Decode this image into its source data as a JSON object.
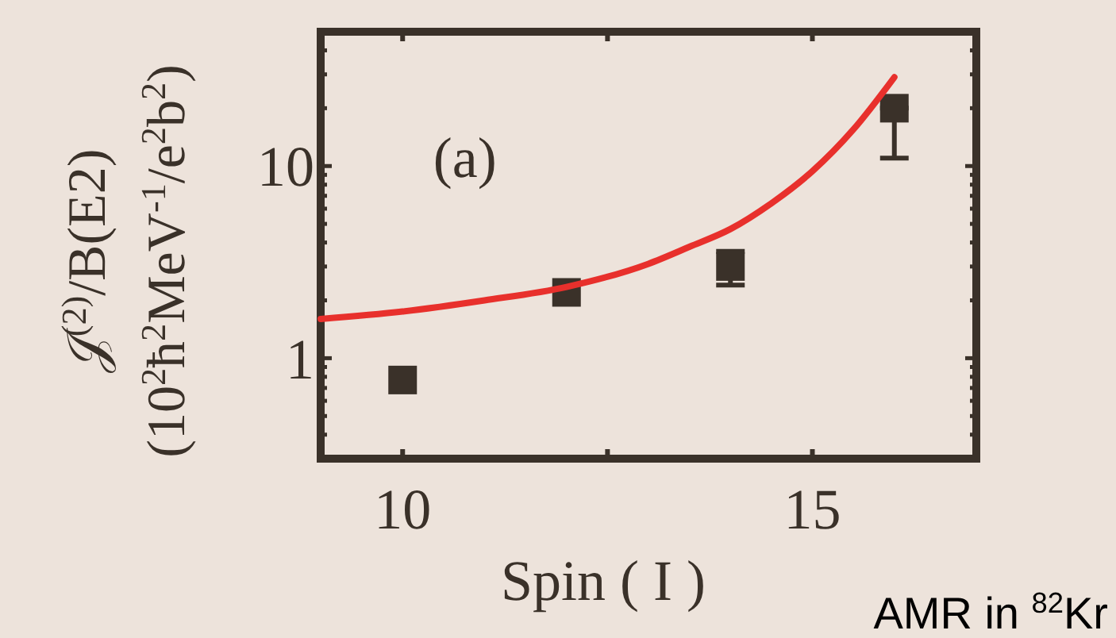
{
  "chart_data": {
    "type": "scatter",
    "xlabel": "Spin ( I )",
    "ylabel": "𝒥$^{(2)}$/B(E2)\n(10$^{2}$ħ$^{2}$MeV$^{-1}$/e$^{2}$b$^{2}$)",
    "annotations": [
      "(a)",
      "AMR in $^{82}$Kr"
    ],
    "log": "y",
    "marker": "square",
    "xlim": [
      9,
      17
    ],
    "xticks": [
      10,
      {
        "value": 12.5,
        "label": null
      },
      15
    ],
    "ylim": [
      0.3,
      50
    ],
    "yticks": [
      {
        "value": 0.4,
        "label": null
      },
      {
        "value": 0.5,
        "label": null
      },
      {
        "value": 0.6,
        "label": null
      },
      {
        "value": 0.7,
        "label": null
      },
      {
        "value": 0.8,
        "label": null
      },
      {
        "value": 0.9,
        "label": null
      },
      1,
      {
        "value": 2,
        "label": null
      },
      {
        "value": 3,
        "label": null
      },
      {
        "value": 4,
        "label": null
      },
      {
        "value": 5,
        "label": null
      },
      {
        "value": 6,
        "label": null
      },
      {
        "value": 7,
        "label": null
      },
      {
        "value": 8,
        "label": null
      },
      {
        "value": 9,
        "label": null
      },
      10,
      {
        "value": 20,
        "label": null
      },
      {
        "value": 30,
        "label": null
      },
      {
        "value": 40,
        "label": null
      }
    ],
    "series": [
      {
        "color": "#3a3129",
        "x": [
          10,
          12,
          14,
          16
        ],
        "values": [
          0.77,
          2.2,
          3.0,
          20
        ],
        "errors": [
          null,
          null,
          [
            2.4,
            3.6
          ],
          [
            11,
            20
          ]
        ]
      },
      {
        "type": "line",
        "color": "#e8302c",
        "marker": "none",
        "x": [
          9,
          10,
          11,
          12,
          13,
          13.5,
          14,
          14.5,
          15,
          15.5,
          16
        ],
        "values": [
          1.6,
          1.75,
          2.0,
          2.35,
          3.1,
          3.8,
          4.7,
          6.4,
          9.4,
          15.5,
          29
        ]
      }
    ]
  }
}
